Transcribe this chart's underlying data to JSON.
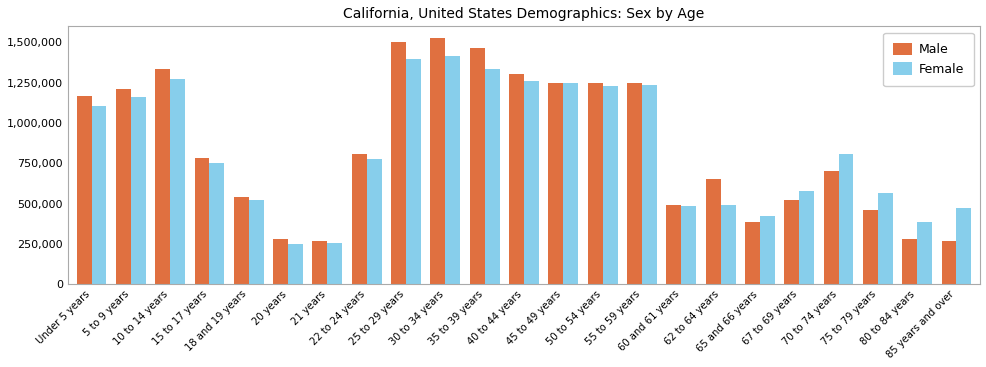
{
  "title": "California, United States Demographics: Sex by Age",
  "categories": [
    "Under 5 years",
    "5 to 9 years",
    "10 to 14 years",
    "15 to 17 years",
    "18 and 19 years",
    "20 years",
    "21 years",
    "22 to 24 years",
    "25 to 29 years",
    "30 to 34 years",
    "35 to 39 years",
    "40 to 44 years",
    "45 to 49 years",
    "50 to 54 years",
    "55 to 59 years",
    "60 and 61 years",
    "62 to 64 years",
    "65 and 66 years",
    "67 to 69 years",
    "70 to 74 years",
    "75 to 79 years",
    "80 to 84 years",
    "85 years and over"
  ],
  "male": [
    1165000,
    1210000,
    1335000,
    780000,
    540000,
    280000,
    265000,
    810000,
    1500000,
    1530000,
    1465000,
    1305000,
    1250000,
    1250000,
    1250000,
    490000,
    650000,
    385000,
    525000,
    700000,
    460000,
    280000,
    270000
  ],
  "female": [
    1105000,
    1160000,
    1275000,
    750000,
    520000,
    250000,
    255000,
    775000,
    1395000,
    1415000,
    1335000,
    1260000,
    1250000,
    1230000,
    1235000,
    485000,
    490000,
    420000,
    575000,
    805000,
    565000,
    385000,
    475000
  ],
  "male_color": "#e07040",
  "female_color": "#87ceeb",
  "bar_width": 0.38,
  "ylim": [
    0,
    1600000
  ],
  "yticks": [
    0,
    250000,
    500000,
    750000,
    1000000,
    1250000,
    1500000
  ],
  "ytick_labels": [
    "0",
    "250,000",
    "500,000",
    "750,000",
    "1,000,000",
    "1,250,000",
    "1,500,000"
  ],
  "legend_labels": [
    "Male",
    "Female"
  ],
  "background_color": "#ffffff",
  "axes_background": "#ffffff"
}
